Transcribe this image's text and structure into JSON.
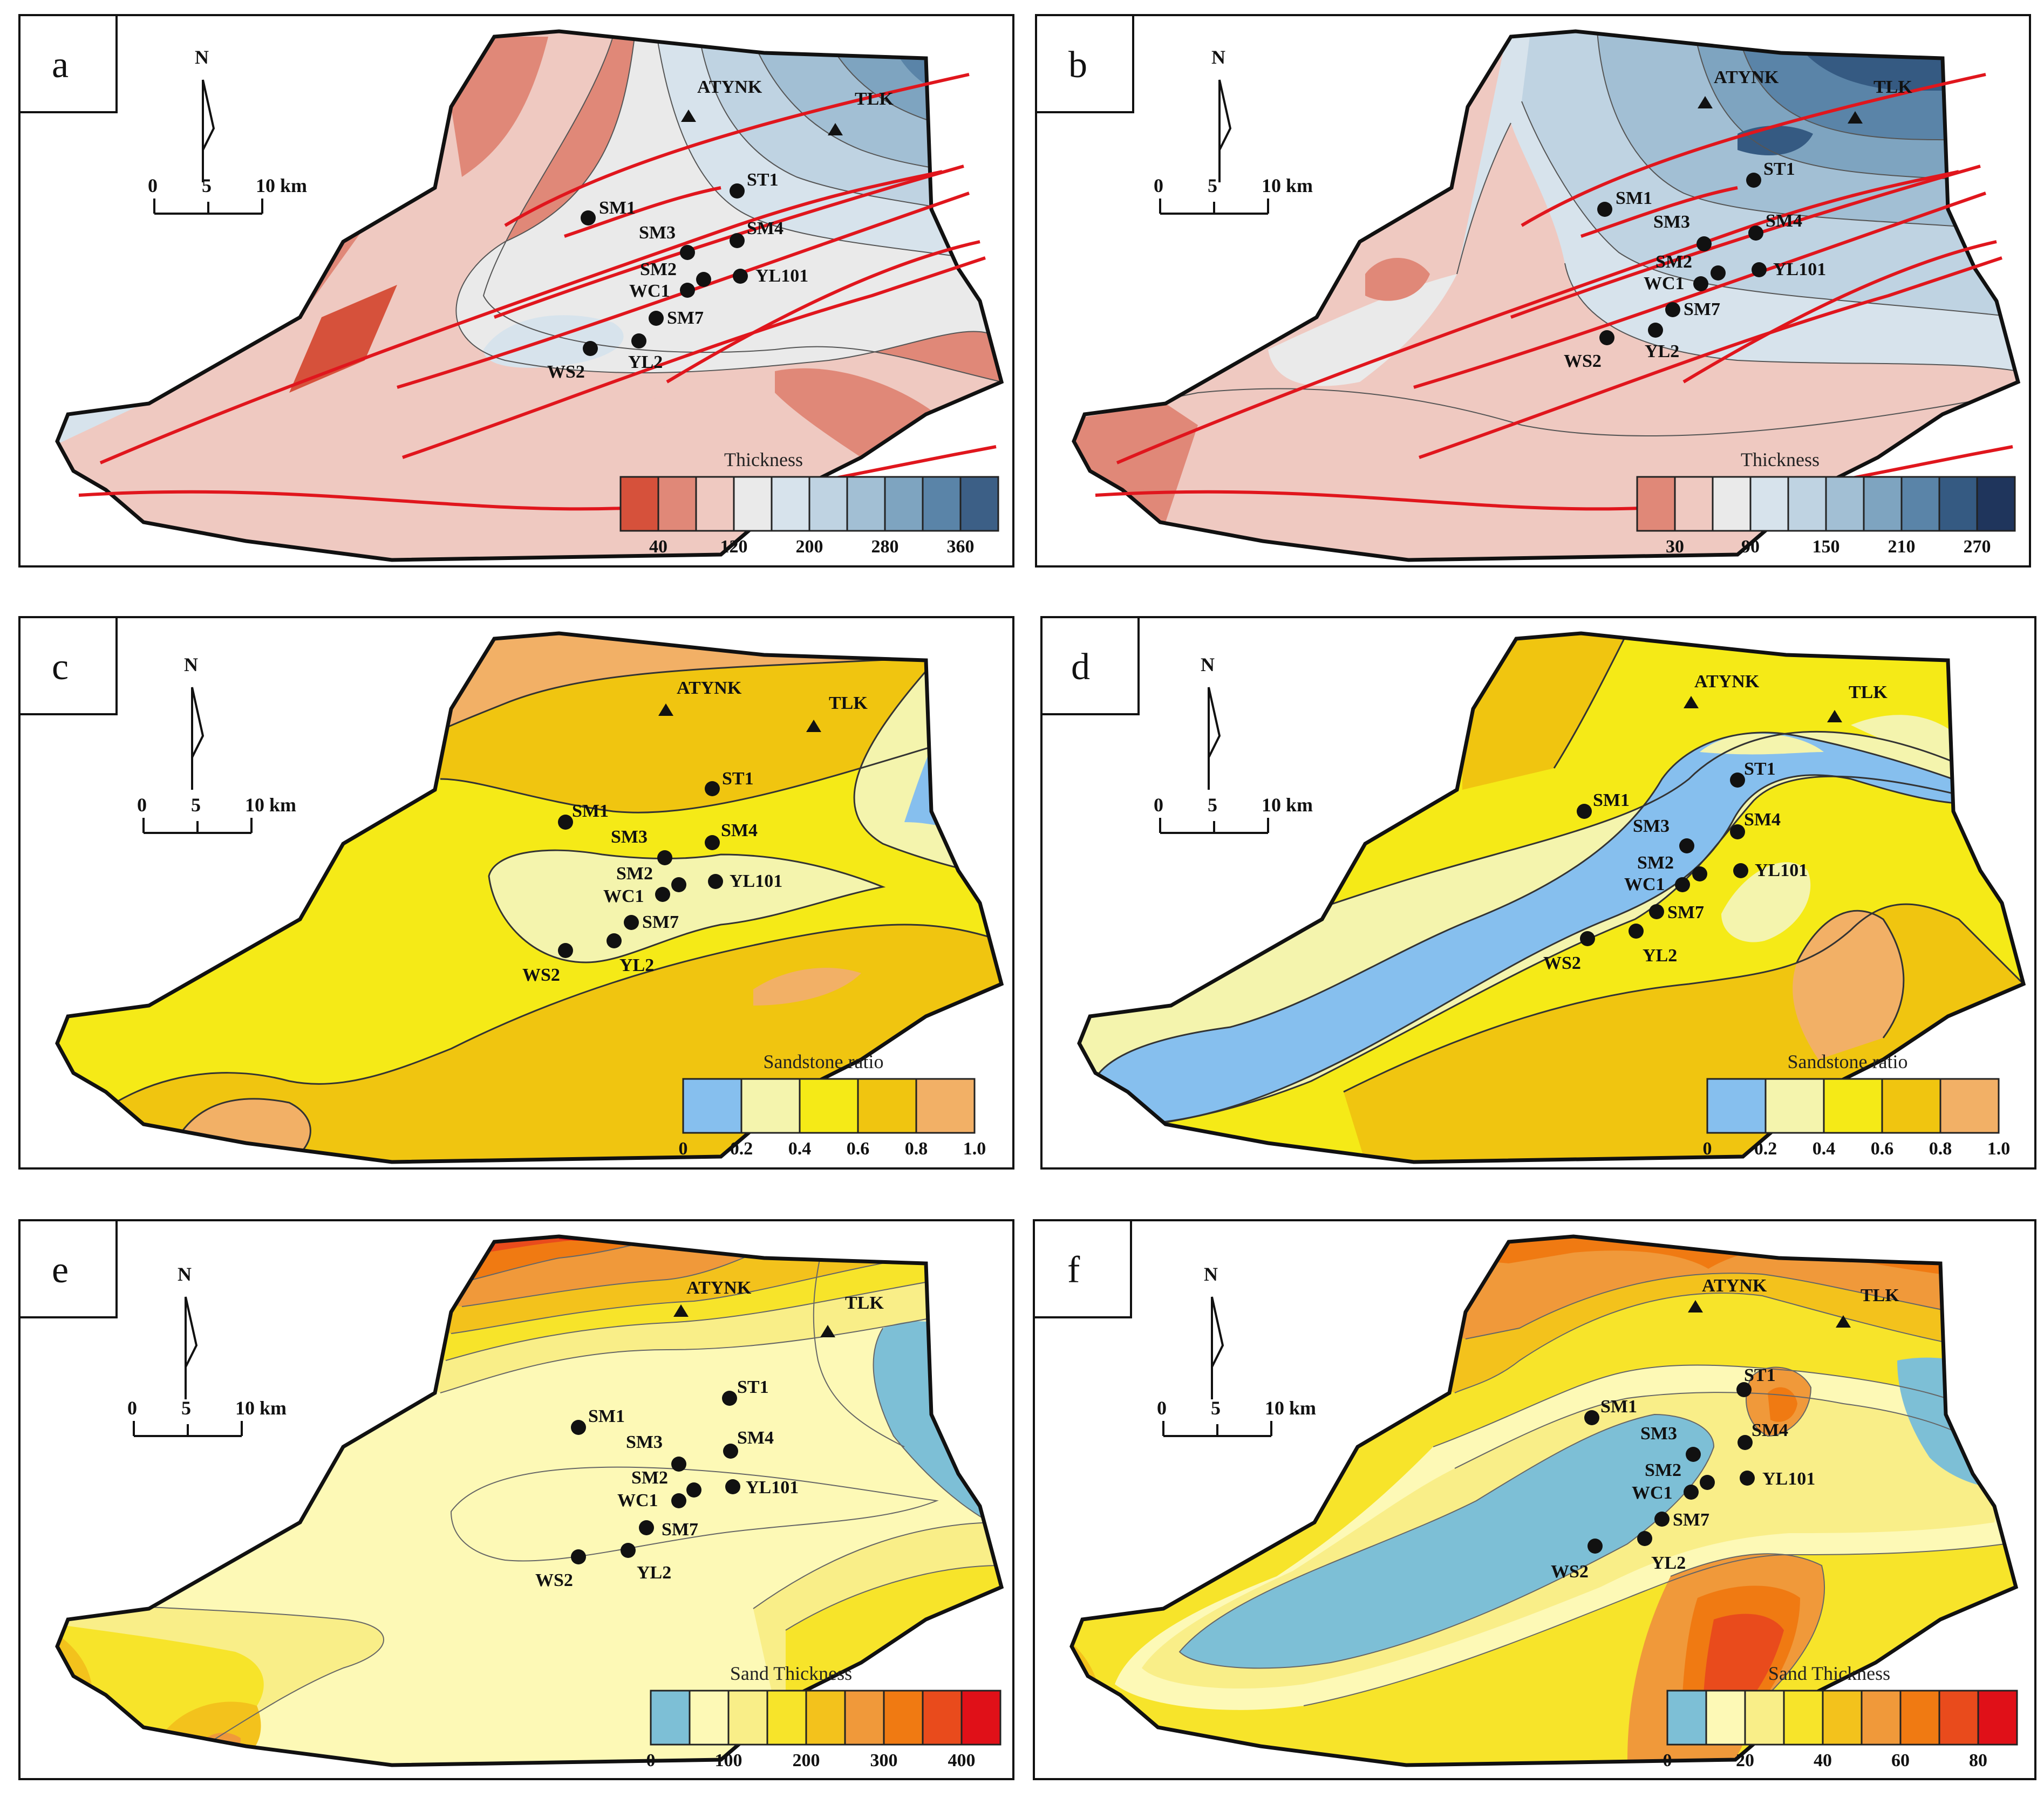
{
  "scale_bar": {
    "labels": [
      "0",
      "5",
      "10 km"
    ]
  },
  "north_label": "N",
  "wells": {
    "SM1": "SM1",
    "SM2": "SM2",
    "SM3": "SM3",
    "SM4": "SM4",
    "SM7": "SM7",
    "ST1": "ST1",
    "WC1": "WC1",
    "YL101": "YL101",
    "YL2": "YL2",
    "WS2": "WS2"
  },
  "stations": {
    "ATYNK": "ATYNK",
    "TLK": "TLK"
  },
  "panels": [
    {
      "letter": "a",
      "colorbar": {
        "title": "Thickness",
        "colors": [
          "#d6513b",
          "#e08878",
          "#efc9c1",
          "#eaeaea",
          "#d7e3ec",
          "#bfd3e2",
          "#a2bfd4",
          "#7ea4c0",
          "#5a84a8",
          "#3c5f86"
        ],
        "ticks": [
          "40",
          "120",
          "200",
          "280",
          "360"
        ]
      }
    },
    {
      "letter": "b",
      "colorbar": {
        "title": "Thickness",
        "colors": [
          "#e08878",
          "#efc9c1",
          "#eaeaea",
          "#d7e3ec",
          "#bfd3e2",
          "#a2bfd4",
          "#7ea4c0",
          "#5a84a8",
          "#355a82",
          "#1f355c"
        ],
        "ticks": [
          "30",
          "90",
          "150",
          "210",
          "270"
        ]
      }
    },
    {
      "letter": "c",
      "colorbar": {
        "title": "Sandstone ratio",
        "colors": [
          "#86bfee",
          "#f4f4ad",
          "#f5ea17",
          "#f0c510",
          "#f2b066"
        ],
        "ticks": [
          "0",
          "0.2",
          "0.4",
          "0.6",
          "0.8",
          "1.0"
        ]
      }
    },
    {
      "letter": "d",
      "colorbar": {
        "title": "Sandstone ratio",
        "colors": [
          "#86bfee",
          "#f4f4ad",
          "#f5ea17",
          "#f0c510",
          "#f2b066"
        ],
        "ticks": [
          "0",
          "0.2",
          "0.4",
          "0.6",
          "0.8",
          "1.0"
        ]
      }
    },
    {
      "letter": "e",
      "colorbar": {
        "title": "Sand Thickness",
        "colors": [
          "#7dbfd6",
          "#fdf9b6",
          "#f9ee88",
          "#f7e42a",
          "#f3c21c",
          "#f0993a",
          "#f07a12",
          "#e94b1c",
          "#e01018"
        ],
        "ticks": [
          "0",
          "100",
          "200",
          "300",
          "400"
        ]
      }
    },
    {
      "letter": "f",
      "colorbar": {
        "title": "Sand Thickness",
        "colors": [
          "#7dbfd6",
          "#fdf9b6",
          "#f9ee88",
          "#f7e42a",
          "#f3c21c",
          "#f0993a",
          "#f07a12",
          "#e94b1c",
          "#e01018"
        ],
        "ticks": [
          "0",
          "20",
          "40",
          "60",
          "80"
        ]
      }
    }
  ]
}
